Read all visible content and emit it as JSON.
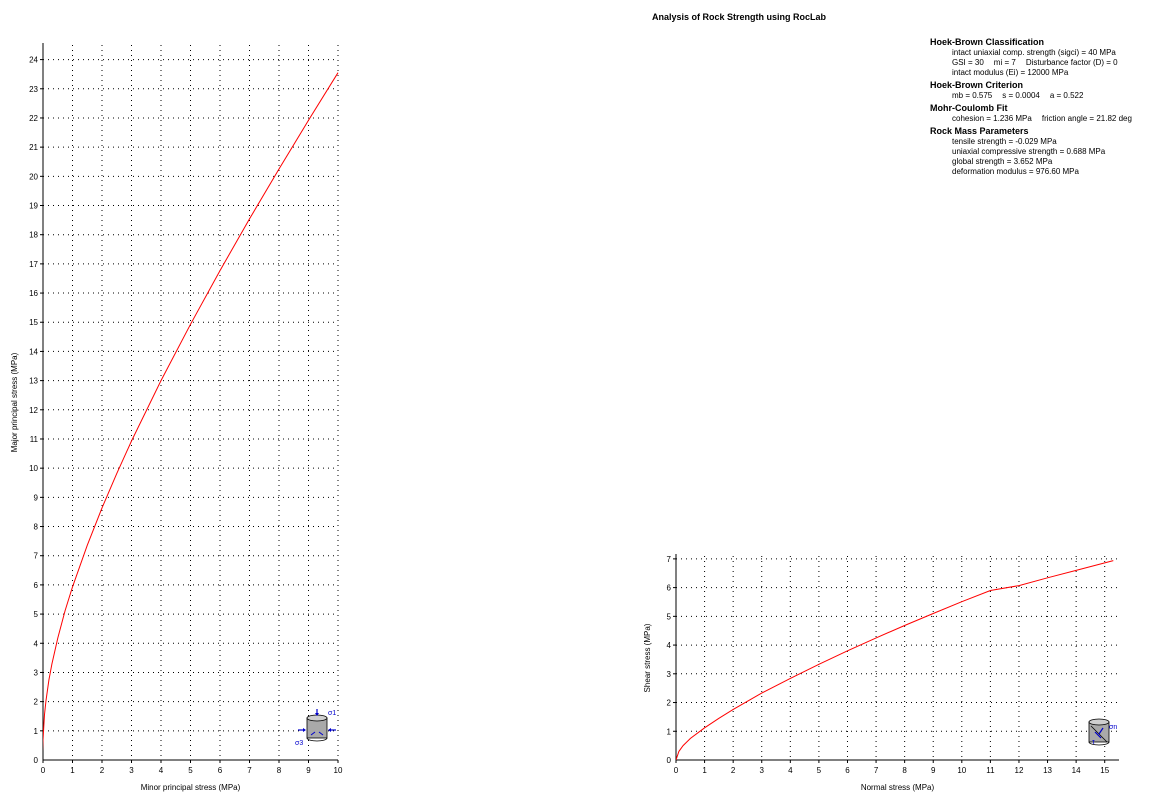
{
  "page_title": "Analysis of Rock Strength using RocLab",
  "info": {
    "hb_class": {
      "title": "Hoek-Brown Classification",
      "sigci": "intact uniaxial comp. strength (sigci) = 40 MPa",
      "gsi": "GSI = 30",
      "mi": "mi = 7",
      "disturbance": "Disturbance factor (D) = 0",
      "ei": "intact modulus (Ei) = 12000 MPa"
    },
    "hb_crit": {
      "title": "Hoek-Brown Criterion",
      "mb": "mb = 0.575",
      "s": "s = 0.0004",
      "a": "a = 0.522"
    },
    "mc_fit": {
      "title": "Mohr-Coulomb Fit",
      "cohesion": "cohesion = 1.236 MPa",
      "friction": "friction angle = 21.82 deg"
    },
    "rock_mass": {
      "title": "Rock Mass Parameters",
      "tensile": "tensile strength = -0.029 MPa",
      "ucs": "uniaxial compressive strength = 0.688 MPa",
      "global": "global strength = 3.652 MPa",
      "deformation": "deformation modulus = 976.60 MPa"
    }
  },
  "icons": {
    "left": "triaxial-cylinder-icon",
    "right": "shear-cylinder-icon"
  },
  "chart_data": [
    {
      "type": "line",
      "xlabel": "Minor principal stress (MPa)",
      "ylabel": "Major principal stress (MPa)",
      "xlim": [
        0,
        10
      ],
      "ylim": [
        0,
        24.5
      ],
      "x_ticks": [
        0,
        1,
        2,
        3,
        4,
        5,
        6,
        7,
        8,
        9,
        10
      ],
      "y_ticks": [
        1,
        2,
        3,
        4,
        5,
        6,
        7,
        8,
        9,
        10,
        11,
        12,
        13,
        14,
        15,
        16,
        17,
        18,
        19,
        20,
        21,
        22,
        23,
        24
      ],
      "grid": true,
      "color": "#ff0000",
      "series": [
        {
          "x": [
            -0.029,
            0,
            0.05,
            0.1,
            0.2,
            0.3,
            0.5,
            0.75,
            1,
            1.5,
            2,
            2.5,
            3,
            4,
            5,
            6,
            7,
            8,
            9,
            10
          ],
          "y": [
            0,
            0.69,
            1.56,
            2.04,
            2.74,
            3.29,
            4.18,
            5.12,
            5.93,
            7.36,
            8.64,
            9.82,
            10.93,
            13.0,
            14.93,
            16.77,
            18.54,
            20.25,
            21.92,
            23.55
          ]
        }
      ],
      "icon_labels": {
        "sigma1": "σ1",
        "sigma3": "σ3"
      }
    },
    {
      "type": "line",
      "xlabel": "Normal stress (MPa)",
      "ylabel": "Shear stress (MPa)",
      "xlim": [
        0,
        15.5
      ],
      "ylim": [
        0,
        7.1
      ],
      "x_ticks": [
        0,
        1,
        2,
        3,
        4,
        5,
        6,
        7,
        8,
        9,
        10,
        11,
        12,
        13,
        14,
        15
      ],
      "y_ticks": [
        1,
        2,
        3,
        4,
        5,
        6,
        7
      ],
      "grid": true,
      "color": "#ff0000",
      "series": [
        {
          "x": [
            0,
            0.1,
            0.25,
            0.5,
            1,
            1.5,
            2,
            3,
            4,
            5,
            6,
            7,
            8,
            9,
            10,
            11,
            12,
            13,
            14,
            15,
            15.3
          ],
          "y": [
            0,
            0.3,
            0.5,
            0.75,
            1.12,
            1.45,
            1.76,
            2.33,
            2.84,
            3.33,
            3.8,
            4.25,
            4.68,
            5.1,
            5.51,
            5.9,
            6.07,
            6.34,
            6.6,
            6.86,
            6.94
          ]
        }
      ],
      "icon_labels": {
        "sigma_n": "σn",
        "tau": "τ"
      }
    }
  ]
}
